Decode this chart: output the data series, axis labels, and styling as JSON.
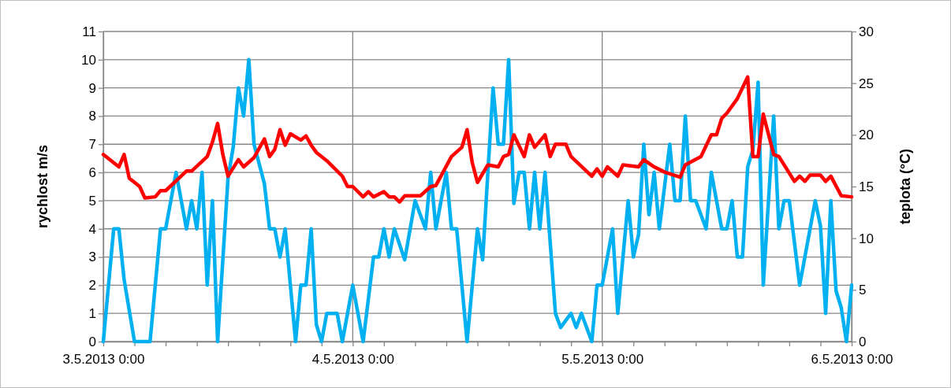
{
  "chart_data": {
    "type": "line",
    "ylabel": "rychlost m/s",
    "y2label": "teplota (°C)",
    "xlim": [
      "2013-05-03T00:00",
      "2013-05-06T00:00"
    ],
    "xticks": [
      {
        "value": "2013-05-03T00:00",
        "label": "3.5.2013 0:00"
      },
      {
        "value": "2013-05-03T03:00",
        "label": null
      },
      {
        "value": "2013-05-03T06:00",
        "label": null
      },
      {
        "value": "2013-05-03T09:00",
        "label": null
      },
      {
        "value": "2013-05-03T12:00",
        "label": null
      },
      {
        "value": "2013-05-03T15:00",
        "label": null
      },
      {
        "value": "2013-05-03T18:00",
        "label": null
      },
      {
        "value": "2013-05-03T21:00",
        "label": null
      },
      {
        "value": "2013-05-04T00:00",
        "label": "4.5.2013 0:00"
      },
      {
        "value": "2013-05-04T03:00",
        "label": null
      },
      {
        "value": "2013-05-04T06:00",
        "label": null
      },
      {
        "value": "2013-05-04T09:00",
        "label": null
      },
      {
        "value": "2013-05-04T12:00",
        "label": null
      },
      {
        "value": "2013-05-04T15:00",
        "label": null
      },
      {
        "value": "2013-05-04T18:00",
        "label": null
      },
      {
        "value": "2013-05-04T21:00",
        "label": null
      },
      {
        "value": "2013-05-05T00:00",
        "label": "5.5.2013 0:00"
      },
      {
        "value": "2013-05-05T03:00",
        "label": null
      },
      {
        "value": "2013-05-05T06:00",
        "label": null
      },
      {
        "value": "2013-05-05T09:00",
        "label": null
      },
      {
        "value": "2013-05-05T12:00",
        "label": null
      },
      {
        "value": "2013-05-05T15:00",
        "label": null
      },
      {
        "value": "2013-05-05T18:00",
        "label": null
      },
      {
        "value": "2013-05-05T21:00",
        "label": null
      },
      {
        "value": "2013-05-06T00:00",
        "label": "6.5.2013 0:00"
      }
    ],
    "ylim": [
      0,
      11
    ],
    "yticks": [
      0,
      1,
      2,
      3,
      4,
      5,
      6,
      7,
      8,
      9,
      10,
      11
    ],
    "y2lim": [
      0,
      30
    ],
    "y2ticks": [
      0,
      5,
      10,
      15,
      20,
      25,
      30
    ],
    "grid": true,
    "marker": "none",
    "line_style": "solid",
    "series": [
      {
        "color": "#00b0f0",
        "axis": "y",
        "x": [
          "2013-05-03T00:00",
          "2013-05-03T01:00",
          "2013-05-03T01:30",
          "2013-05-03T02:00",
          "2013-05-03T03:00",
          "2013-05-03T04:30",
          "2013-05-03T05:30",
          "2013-05-03T06:00",
          "2013-05-03T07:00",
          "2013-05-03T08:00",
          "2013-05-03T08:30",
          "2013-05-03T09:00",
          "2013-05-03T09:30",
          "2013-05-03T10:00",
          "2013-05-03T10:30",
          "2013-05-03T11:00",
          "2013-05-03T12:00",
          "2013-05-03T12:30",
          "2013-05-03T13:00",
          "2013-05-03T13:30",
          "2013-05-03T14:00",
          "2013-05-03T14:30",
          "2013-05-03T15:30",
          "2013-05-03T16:00",
          "2013-05-03T16:30",
          "2013-05-03T17:00",
          "2013-05-03T17:30",
          "2013-05-03T18:30",
          "2013-05-03T19:00",
          "2013-05-03T19:30",
          "2013-05-03T20:00",
          "2013-05-03T20:30",
          "2013-05-03T21:00",
          "2013-05-03T21:30",
          "2013-05-03T22:30",
          "2013-05-03T23:00",
          "2013-05-04T00:00",
          "2013-05-04T01:00",
          "2013-05-04T02:00",
          "2013-05-04T02:30",
          "2013-05-04T03:00",
          "2013-05-04T03:30",
          "2013-05-04T04:00",
          "2013-05-04T05:00",
          "2013-05-04T06:00",
          "2013-05-04T07:00",
          "2013-05-04T07:30",
          "2013-05-04T08:00",
          "2013-05-04T09:00",
          "2013-05-04T09:30",
          "2013-05-04T10:00",
          "2013-05-04T11:00",
          "2013-05-04T12:00",
          "2013-05-04T12:30",
          "2013-05-04T13:00",
          "2013-05-04T13:30",
          "2013-05-04T14:00",
          "2013-05-04T14:30",
          "2013-05-04T15:00",
          "2013-05-04T15:30",
          "2013-05-04T16:00",
          "2013-05-04T16:30",
          "2013-05-04T17:00",
          "2013-05-04T17:30",
          "2013-05-04T18:00",
          "2013-05-04T18:30",
          "2013-05-04T19:30",
          "2013-05-04T20:00",
          "2013-05-04T21:00",
          "2013-05-04T21:30",
          "2013-05-04T22:00",
          "2013-05-04T23:00",
          "2013-05-04T23:30",
          "2013-05-05T00:00",
          "2013-05-05T01:00",
          "2013-05-05T01:30",
          "2013-05-05T02:30",
          "2013-05-05T03:00",
          "2013-05-05T03:30",
          "2013-05-05T04:00",
          "2013-05-05T04:30",
          "2013-05-05T05:00",
          "2013-05-05T05:30",
          "2013-05-05T06:30",
          "2013-05-05T07:00",
          "2013-05-05T07:30",
          "2013-05-05T08:00",
          "2013-05-05T08:30",
          "2013-05-05T09:00",
          "2013-05-05T10:00",
          "2013-05-05T10:30",
          "2013-05-05T11:30",
          "2013-05-05T12:00",
          "2013-05-05T12:30",
          "2013-05-05T13:00",
          "2013-05-05T13:30",
          "2013-05-05T14:00",
          "2013-05-05T14:30",
          "2013-05-05T15:00",
          "2013-05-05T15:30",
          "2013-05-05T16:30",
          "2013-05-05T17:00",
          "2013-05-05T17:30",
          "2013-05-05T18:00",
          "2013-05-05T19:00",
          "2013-05-05T19:30",
          "2013-05-05T20:30",
          "2013-05-05T21:00",
          "2013-05-05T21:30",
          "2013-05-05T22:00",
          "2013-05-05T22:30",
          "2013-05-05T23:00",
          "2013-05-05T23:30",
          "2013-05-06T00:00"
        ],
        "values": [
          0,
          4,
          4,
          2.2,
          0,
          0,
          4,
          4,
          6,
          4,
          5,
          4,
          6,
          2,
          5,
          0,
          5.8,
          6.9,
          9,
          8,
          10,
          7,
          5.6,
          4,
          4,
          3,
          4,
          0,
          2,
          2,
          4,
          0.6,
          0,
          1,
          1,
          0,
          2,
          0,
          3,
          3,
          4,
          3,
          4,
          2.9,
          5,
          4,
          6,
          4,
          6,
          4,
          4,
          0,
          4,
          2.9,
          6,
          9,
          7,
          7,
          10,
          4.9,
          6,
          6,
          4,
          6,
          4,
          6,
          1,
          0.5,
          1,
          0.5,
          1,
          0,
          2,
          2,
          4,
          1,
          5,
          3,
          3.8,
          7,
          4.5,
          6,
          4,
          7,
          5,
          5,
          8,
          5,
          5,
          4,
          6,
          4,
          4,
          5,
          3,
          3,
          6.2,
          6.8,
          9.2,
          2,
          8,
          4,
          5,
          5,
          2,
          3,
          5,
          4.1,
          1,
          5,
          1.8,
          1.2,
          0,
          2
        ]
      },
      {
        "color": "#ff0000",
        "axis": "y2",
        "x": [
          "2013-05-03T00:00",
          "2013-05-03T01:30",
          "2013-05-03T02:00",
          "2013-05-03T02:30",
          "2013-05-03T03:30",
          "2013-05-03T04:00",
          "2013-05-03T05:00",
          "2013-05-03T05:30",
          "2013-05-03T06:00",
          "2013-05-03T08:00",
          "2013-05-03T08:30",
          "2013-05-03T10:00",
          "2013-05-03T10:30",
          "2013-05-03T11:00",
          "2013-05-03T11:30",
          "2013-05-03T12:00",
          "2013-05-03T13:00",
          "2013-05-03T13:30",
          "2013-05-03T14:30",
          "2013-05-03T15:30",
          "2013-05-03T16:00",
          "2013-05-03T16:30",
          "2013-05-03T17:00",
          "2013-05-03T17:30",
          "2013-05-03T18:00",
          "2013-05-03T19:00",
          "2013-05-03T19:30",
          "2013-05-03T20:00",
          "2013-05-03T20:30",
          "2013-05-03T21:30",
          "2013-05-03T23:00",
          "2013-05-03T23:30",
          "2013-05-04T00:00",
          "2013-05-04T01:00",
          "2013-05-04T01:30",
          "2013-05-04T02:00",
          "2013-05-04T03:00",
          "2013-05-04T03:30",
          "2013-05-04T04:00",
          "2013-05-04T04:30",
          "2013-05-04T05:00",
          "2013-05-04T06:30",
          "2013-05-04T07:30",
          "2013-05-04T08:00",
          "2013-05-04T09:30",
          "2013-05-04T10:30",
          "2013-05-04T11:00",
          "2013-05-04T11:30",
          "2013-05-04T12:00",
          "2013-05-04T13:00",
          "2013-05-04T14:00",
          "2013-05-04T14:30",
          "2013-05-04T15:00",
          "2013-05-04T15:30",
          "2013-05-04T16:30",
          "2013-05-04T17:00",
          "2013-05-04T17:30",
          "2013-05-04T18:30",
          "2013-05-04T19:00",
          "2013-05-04T19:30",
          "2013-05-04T20:30",
          "2013-05-04T21:00",
          "2013-05-04T23:00",
          "2013-05-04T23:30",
          "2013-05-05T00:00",
          "2013-05-05T00:30",
          "2013-05-05T01:30",
          "2013-05-05T02:00",
          "2013-05-05T03:30",
          "2013-05-05T04:00",
          "2013-05-05T05:00",
          "2013-05-05T06:00",
          "2013-05-05T07:30",
          "2013-05-05T08:00",
          "2013-05-05T09:30",
          "2013-05-05T10:30",
          "2013-05-05T11:00",
          "2013-05-05T11:30",
          "2013-05-05T12:00",
          "2013-05-05T13:00",
          "2013-05-05T14:00",
          "2013-05-05T14:30",
          "2013-05-05T15:00",
          "2013-05-05T15:30",
          "2013-05-05T16:30",
          "2013-05-05T17:00",
          "2013-05-05T18:30",
          "2013-05-05T19:00",
          "2013-05-05T19:30",
          "2013-05-05T20:00",
          "2013-05-05T21:00",
          "2013-05-05T21:30",
          "2013-05-05T22:00",
          "2013-05-05T23:00",
          "2013-05-06T00:00"
        ],
        "values": [
          18.1,
          16.9,
          18.1,
          15.8,
          15.0,
          13.9,
          14.0,
          14.6,
          14.6,
          16.5,
          16.5,
          17.9,
          19.3,
          21.1,
          18.1,
          16.0,
          17.6,
          16.9,
          17.8,
          19.6,
          17.9,
          18.6,
          20.5,
          19.0,
          20.1,
          19.5,
          19.9,
          19.0,
          18.3,
          17.5,
          16.0,
          15.0,
          15.0,
          14.0,
          14.5,
          14.0,
          14.5,
          14.0,
          14.0,
          13.5,
          14.1,
          14.1,
          15.0,
          15.1,
          17.9,
          18.8,
          20.5,
          17.3,
          15.4,
          17.1,
          16.9,
          17.9,
          18.1,
          20.0,
          17.9,
          20.0,
          18.8,
          20.0,
          17.9,
          19.1,
          19.1,
          17.9,
          16.0,
          16.7,
          16.0,
          16.9,
          16.0,
          17.1,
          16.9,
          17.6,
          16.9,
          16.4,
          15.9,
          17.1,
          17.9,
          20.0,
          20.0,
          21.6,
          22.1,
          23.5,
          25.6,
          17.9,
          17.9,
          22.0,
          18.1,
          17.9,
          15.5,
          16.0,
          15.5,
          16.1,
          16.1,
          15.5,
          16.0,
          14.1,
          14.0
        ]
      }
    ]
  }
}
